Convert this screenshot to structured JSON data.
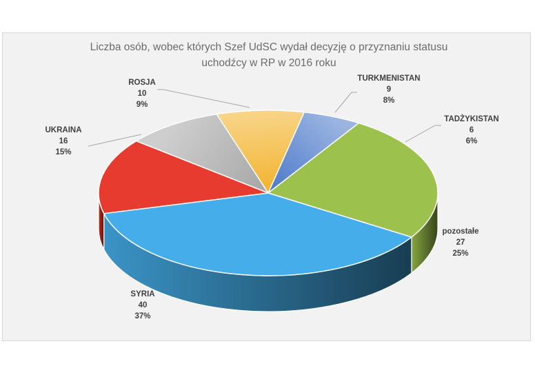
{
  "chart_data": {
    "type": "pie",
    "title_lines": [
      "Liczba osób, wobec których Szef UdSC wydał decyzję o  przyznaniu statusu",
      "uchodźcy w RP w 2016 roku"
    ],
    "slices": [
      {
        "name": "TURKMENISTAN",
        "value": 9,
        "percent": "8%",
        "value_label": "9",
        "color": "#f2b32c"
      },
      {
        "name": "TADŻYKISTAN",
        "value": 6,
        "percent": "6%",
        "value_label": "6",
        "color": "#4a78c9"
      },
      {
        "name": "pozostałe",
        "value": 27,
        "percent": "25%",
        "value_label": "27",
        "color": "#9cc24d"
      },
      {
        "name": "SYRIA",
        "value": 40,
        "percent": "37%",
        "value_label": "40",
        "color": "#45aeea"
      },
      {
        "name": "UKRAINA",
        "value": 16,
        "percent": "15%",
        "value_label": "16",
        "color": "#e63b2e"
      },
      {
        "name": "ROSJA",
        "value": 10,
        "percent": "9%",
        "value_label": "10",
        "color": "#a6a6a6"
      }
    ],
    "legend": "none",
    "style": "3d-pie"
  }
}
